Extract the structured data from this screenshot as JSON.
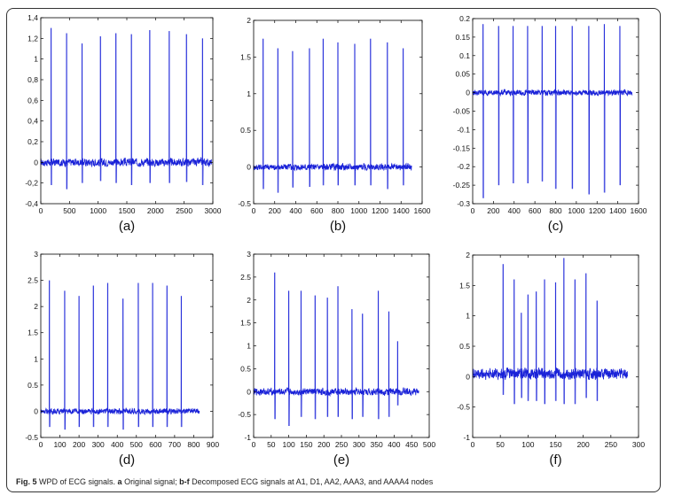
{
  "colors": {
    "signal": "#1a22d8",
    "axis": "#000000"
  },
  "caption": {
    "fig": "Fig. 5",
    "text1": " WPD of ECG signals. ",
    "a": "a",
    "text2": " Original signal; ",
    "bf": "b-f",
    "text3": " Decomposed ECG signals at A1, D1, AA2, AAA3, and AAAA4 nodes"
  },
  "chart_data": [
    {
      "type": "line",
      "label": "(a)",
      "xlim": [
        0,
        3000
      ],
      "ylim": [
        -0.4,
        1.4
      ],
      "xticks": [
        0,
        500,
        1000,
        1500,
        2000,
        2500,
        3000
      ],
      "xtick_labels": [
        "0",
        "500",
        "1000",
        "1500",
        "2000",
        "2500",
        "3000"
      ],
      "yticks": [
        -0.4,
        -0.2,
        0,
        0.2,
        0.4,
        0.6,
        0.8,
        1,
        1.2,
        1.4
      ],
      "ytick_labels": [
        "-0,4",
        "-0,2",
        "0",
        "0,2",
        "0,4",
        "0,6",
        "0,8",
        "1",
        "1,2",
        "1,4"
      ],
      "signal_end": 2980,
      "baseline": 0.0,
      "noise": 0.05,
      "beats": [
        {
          "x": 180,
          "peak": 1.3,
          "trough": -0.22
        },
        {
          "x": 450,
          "peak": 1.25,
          "trough": -0.26
        },
        {
          "x": 720,
          "peak": 1.15,
          "trough": -0.2
        },
        {
          "x": 1040,
          "peak": 1.22,
          "trough": -0.18
        },
        {
          "x": 1310,
          "peak": 1.25,
          "trough": -0.2
        },
        {
          "x": 1580,
          "peak": 1.24,
          "trough": -0.22
        },
        {
          "x": 1900,
          "peak": 1.28,
          "trough": -0.2
        },
        {
          "x": 2240,
          "peak": 1.27,
          "trough": -0.2
        },
        {
          "x": 2540,
          "peak": 1.24,
          "trough": -0.19
        },
        {
          "x": 2820,
          "peak": 1.2,
          "trough": -0.22
        }
      ]
    },
    {
      "type": "line",
      "label": "(b)",
      "xlim": [
        0,
        1600
      ],
      "ylim": [
        -0.5,
        2
      ],
      "xticks": [
        0,
        200,
        400,
        600,
        800,
        1000,
        1200,
        1400,
        1600
      ],
      "xtick_labels": [
        "0",
        "200",
        "400",
        "600",
        "800",
        "1000",
        "1200",
        "1400",
        "1600"
      ],
      "yticks": [
        -0.5,
        0,
        0.5,
        1,
        1.5,
        2
      ],
      "ytick_labels": [
        "-0.5",
        "0",
        "0.5",
        "1",
        "1.5",
        "2"
      ],
      "signal_end": 1500,
      "baseline": 0.0,
      "noise": 0.06,
      "beats": [
        {
          "x": 90,
          "peak": 1.75,
          "trough": -0.3
        },
        {
          "x": 230,
          "peak": 1.62,
          "trough": -0.35
        },
        {
          "x": 370,
          "peak": 1.58,
          "trough": -0.28
        },
        {
          "x": 530,
          "peak": 1.62,
          "trough": -0.27
        },
        {
          "x": 660,
          "peak": 1.75,
          "trough": -0.25
        },
        {
          "x": 800,
          "peak": 1.7,
          "trough": -0.25
        },
        {
          "x": 960,
          "peak": 1.68,
          "trough": -0.25
        },
        {
          "x": 1110,
          "peak": 1.75,
          "trough": -0.25
        },
        {
          "x": 1270,
          "peak": 1.7,
          "trough": -0.3
        },
        {
          "x": 1420,
          "peak": 1.62,
          "trough": -0.25
        }
      ]
    },
    {
      "type": "line",
      "label": "(c)",
      "xlim": [
        0,
        1600
      ],
      "ylim": [
        -0.3,
        0.2
      ],
      "xticks": [
        0,
        200,
        400,
        600,
        800,
        1000,
        1200,
        1400,
        1600
      ],
      "xtick_labels": [
        "0",
        "200",
        "400",
        "600",
        "800",
        "1000",
        "1200",
        "1400",
        "1600"
      ],
      "yticks": [
        -0.3,
        -0.25,
        -0.2,
        -0.15,
        -0.1,
        -0.05,
        0,
        0.05,
        0.1,
        0.15,
        0.2
      ],
      "ytick_labels": [
        "-0.3",
        "-0.25",
        "-0.2",
        "-0.15",
        "-0.1",
        "-0.05",
        "0",
        "0.05",
        "0.1",
        "0.15",
        "0.2"
      ],
      "signal_end": 1540,
      "baseline": 0.0,
      "noise": 0.01,
      "beats": [
        {
          "x": 100,
          "peak": 0.185,
          "trough": -0.285
        },
        {
          "x": 250,
          "peak": 0.18,
          "trough": -0.25
        },
        {
          "x": 390,
          "peak": 0.18,
          "trough": -0.245
        },
        {
          "x": 530,
          "peak": 0.18,
          "trough": -0.245
        },
        {
          "x": 670,
          "peak": 0.18,
          "trough": -0.24
        },
        {
          "x": 800,
          "peak": 0.18,
          "trough": -0.26
        },
        {
          "x": 960,
          "peak": 0.18,
          "trough": -0.26
        },
        {
          "x": 1120,
          "peak": 0.18,
          "trough": -0.275
        },
        {
          "x": 1270,
          "peak": 0.185,
          "trough": -0.27
        },
        {
          "x": 1420,
          "peak": 0.18,
          "trough": -0.25
        }
      ]
    },
    {
      "type": "line",
      "label": "(d)",
      "xlim": [
        0,
        900
      ],
      "ylim": [
        -0.5,
        3
      ],
      "xticks": [
        0,
        100,
        200,
        300,
        400,
        500,
        600,
        700,
        800,
        900
      ],
      "xtick_labels": [
        "0",
        "100",
        "200",
        "300",
        "400",
        "500",
        "600",
        "700",
        "800",
        "900"
      ],
      "yticks": [
        -0.5,
        0,
        0.5,
        1,
        1.5,
        2,
        2.5,
        3
      ],
      "ytick_labels": [
        "-0.5",
        "0",
        "0.5",
        "1",
        "1.5",
        "2",
        "2.5",
        "3"
      ],
      "signal_end": 830,
      "baseline": 0.0,
      "noise": 0.07,
      "beats": [
        {
          "x": 45,
          "peak": 2.5,
          "trough": -0.3
        },
        {
          "x": 125,
          "peak": 2.3,
          "trough": -0.35
        },
        {
          "x": 200,
          "peak": 2.2,
          "trough": -0.3
        },
        {
          "x": 275,
          "peak": 2.4,
          "trough": -0.3
        },
        {
          "x": 350,
          "peak": 2.45,
          "trough": -0.3
        },
        {
          "x": 430,
          "peak": 2.15,
          "trough": -0.35
        },
        {
          "x": 510,
          "peak": 2.45,
          "trough": -0.3
        },
        {
          "x": 585,
          "peak": 2.45,
          "trough": -0.3
        },
        {
          "x": 660,
          "peak": 2.4,
          "trough": -0.3
        },
        {
          "x": 735,
          "peak": 2.2,
          "trough": -0.3
        }
      ]
    },
    {
      "type": "line",
      "label": "(e)",
      "xlim": [
        0,
        500
      ],
      "ylim": [
        -1,
        3
      ],
      "xticks": [
        0,
        50,
        100,
        150,
        200,
        250,
        300,
        350,
        400,
        450,
        500
      ],
      "xtick_labels": [
        "0",
        "50",
        "100",
        "150",
        "200",
        "250",
        "300",
        "350",
        "400",
        "450",
        "500"
      ],
      "yticks": [
        -1,
        -0.5,
        0,
        0.5,
        1,
        1.5,
        2,
        2.5,
        3
      ],
      "ytick_labels": [
        "-1",
        "-0.5",
        "0",
        "0.5",
        "1",
        "1.5",
        "2",
        "2.5",
        "3"
      ],
      "signal_end": 470,
      "baseline": 0.0,
      "noise": 0.1,
      "beats": [
        {
          "x": 60,
          "peak": 2.6,
          "trough": -0.6
        },
        {
          "x": 100,
          "peak": 2.2,
          "trough": -0.75
        },
        {
          "x": 135,
          "peak": 2.2,
          "trough": -0.55
        },
        {
          "x": 175,
          "peak": 2.1,
          "trough": -0.6
        },
        {
          "x": 210,
          "peak": 2.05,
          "trough": -0.55
        },
        {
          "x": 240,
          "peak": 2.3,
          "trough": -0.55
        },
        {
          "x": 280,
          "peak": 1.8,
          "trough": -0.6
        },
        {
          "x": 310,
          "peak": 1.7,
          "trough": -0.55
        },
        {
          "x": 355,
          "peak": 2.2,
          "trough": -0.6
        },
        {
          "x": 385,
          "peak": 1.75,
          "trough": -0.55
        },
        {
          "x": 410,
          "peak": 1.1,
          "trough": -0.3
        }
      ]
    },
    {
      "type": "line",
      "label": "(f)",
      "xlim": [
        0,
        300
      ],
      "ylim": [
        -1,
        2
      ],
      "xticks": [
        0,
        50,
        100,
        150,
        200,
        250,
        300
      ],
      "xtick_labels": [
        "0",
        "50",
        "100",
        "150",
        "200",
        "250",
        "300"
      ],
      "yticks": [
        -1,
        -0.5,
        0,
        0.5,
        1,
        1.5,
        2
      ],
      "ytick_labels": [
        "-1",
        "-0.5",
        "0",
        "0.5",
        "1",
        "1.5",
        "2"
      ],
      "signal_end": 280,
      "baseline": 0.05,
      "noise": 0.12,
      "beats": [
        {
          "x": 55,
          "peak": 1.85,
          "trough": -0.3
        },
        {
          "x": 75,
          "peak": 1.6,
          "trough": -0.45
        },
        {
          "x": 88,
          "peak": 1.05,
          "trough": -0.35
        },
        {
          "x": 100,
          "peak": 1.35,
          "trough": -0.4
        },
        {
          "x": 115,
          "peak": 1.4,
          "trough": -0.4
        },
        {
          "x": 130,
          "peak": 1.6,
          "trough": -0.45
        },
        {
          "x": 150,
          "peak": 1.55,
          "trough": -0.4
        },
        {
          "x": 165,
          "peak": 1.95,
          "trough": -0.45
        },
        {
          "x": 185,
          "peak": 1.6,
          "trough": -0.45
        },
        {
          "x": 205,
          "peak": 1.7,
          "trough": -0.35
        },
        {
          "x": 225,
          "peak": 1.25,
          "trough": -0.4
        }
      ]
    }
  ]
}
